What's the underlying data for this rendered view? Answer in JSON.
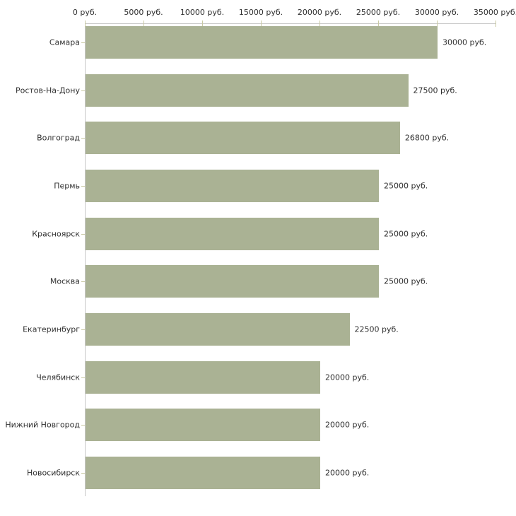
{
  "chart_data": {
    "type": "bar",
    "orientation": "horizontal",
    "title": "",
    "categories": [
      "Самара",
      "Ростов-На-Дону",
      "Волгоград",
      "Пермь",
      "Красноярск",
      "Москва",
      "Екатеринбург",
      "Челябинск",
      "Нижний Новгород",
      "Новосибирск"
    ],
    "values": [
      30000,
      27500,
      26800,
      25000,
      25000,
      25000,
      22500,
      20000,
      20000,
      20000
    ],
    "value_labels": [
      "30000 руб.",
      "27500 руб.",
      "26800 руб.",
      "25000 руб.",
      "25000 руб.",
      "25000 руб.",
      "22500 руб.",
      "20000 руб.",
      "20000 руб.",
      "20000 руб."
    ],
    "x_axis": {
      "min": 0,
      "max": 35000,
      "tick_step": 5000,
      "tick_values": [
        0,
        5000,
        10000,
        15000,
        20000,
        25000,
        30000,
        35000
      ],
      "tick_labels": [
        "0 руб.",
        "5000 руб.",
        "10000 руб.",
        "15000 руб.",
        "20000 руб.",
        "25000 руб.",
        "30000 руб.",
        "35000 руб."
      ],
      "unit": "руб."
    },
    "legend": false,
    "grid": false,
    "colors": {
      "bar": "#aab294",
      "axis_line": "#c6c6c6",
      "tick_mark": "#c9c9a3",
      "text": "#2f2f2f",
      "background": "#ffffff"
    }
  }
}
